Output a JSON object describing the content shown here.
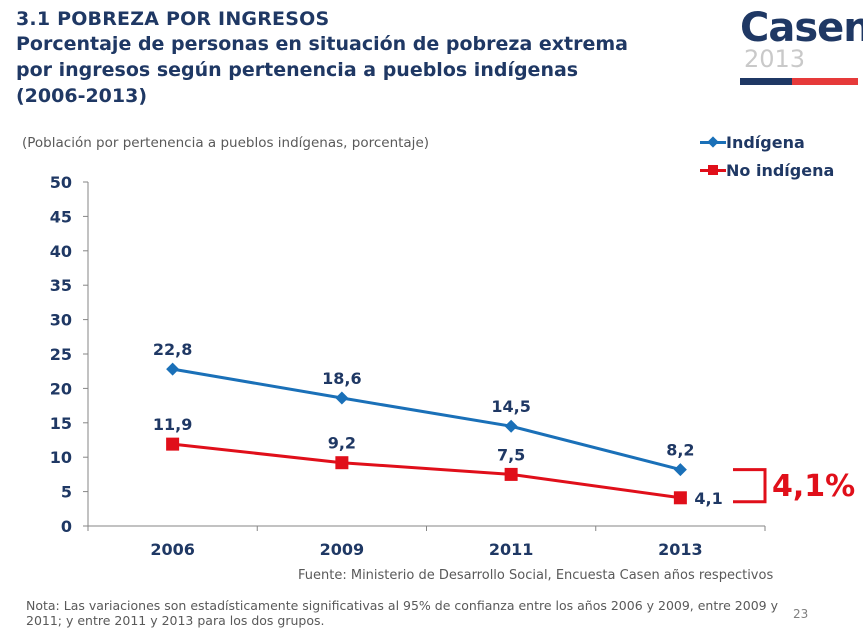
{
  "header": {
    "section_title": "3.1 POBREZA POR INGRESOS",
    "main_title": "Porcentaje de personas en situación de pobreza extrema\npor ingresos según pertenencia a pueblos indígenas\n(2006-2013)"
  },
  "logo": {
    "name": "Casen",
    "year": "2013"
  },
  "subtitle": "(Población por pertenencia a pueblos indígenas, porcentaje)",
  "legend": {
    "items": [
      "Indígena",
      "No indígena"
    ]
  },
  "colors": {
    "indigena": "#1a70b8",
    "no_indigena": "#e00f1a",
    "axis_text": "#1f3864"
  },
  "chart_data": {
    "type": "line",
    "title": "Porcentaje de personas en situación de pobreza extrema por ingresos según pertenencia a pueblos indígenas (2006-2013)",
    "ylabel": "Población por pertenencia a pueblos indígenas, porcentaje",
    "categories": [
      "2006",
      "2009",
      "2011",
      "2013"
    ],
    "ylim": [
      0,
      50
    ],
    "yticks": [
      0,
      5,
      10,
      15,
      20,
      25,
      30,
      35,
      40,
      45,
      50
    ],
    "series": [
      {
        "name": "Indígena",
        "values": [
          22.8,
          18.6,
          14.5,
          8.2
        ],
        "labels": [
          "22,8",
          "18,6",
          "14,5",
          "8,2"
        ],
        "marker": "diamond"
      },
      {
        "name": "No indígena",
        "values": [
          11.9,
          9.2,
          7.5,
          4.1
        ],
        "labels": [
          "11,9",
          "9,2",
          "7,5",
          "4,1"
        ],
        "marker": "square"
      }
    ],
    "annotation": "4,1%"
  },
  "source": "Fuente: Ministerio de Desarrollo Social, Encuesta Casen años respectivos",
  "note": "Nota: Las variaciones son estadísticamente significativas al 95% de confianza entre los años 2006 y 2009, entre 2009 y 2011; y entre 2011 y 2013 para los dos grupos.",
  "page_number": "23"
}
